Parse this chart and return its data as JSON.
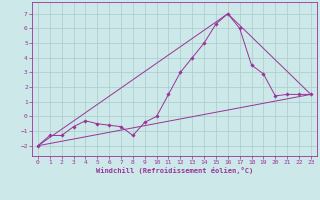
{
  "xlabel": "Windchill (Refroidissement éolien,°C)",
  "background_color": "#cce8e8",
  "grid_color": "#aacccc",
  "line_color": "#993399",
  "xlim": [
    -0.5,
    23.5
  ],
  "ylim": [
    -2.7,
    7.8
  ],
  "yticks": [
    -2,
    -1,
    0,
    1,
    2,
    3,
    4,
    5,
    6,
    7
  ],
  "xticks": [
    0,
    1,
    2,
    3,
    4,
    5,
    6,
    7,
    8,
    9,
    10,
    11,
    12,
    13,
    14,
    15,
    16,
    17,
    18,
    19,
    20,
    21,
    22,
    23
  ],
  "line1_x": [
    0,
    1,
    2,
    3,
    4,
    5,
    6,
    7,
    8,
    9,
    10,
    11,
    12,
    13,
    14,
    15,
    16,
    17,
    18,
    19,
    20,
    21,
    22,
    23
  ],
  "line1_y": [
    -2.0,
    -1.3,
    -1.3,
    -0.7,
    -0.3,
    -0.5,
    -0.6,
    -0.7,
    -1.3,
    -0.4,
    0.0,
    1.5,
    3.0,
    4.0,
    5.0,
    6.3,
    7.0,
    6.0,
    3.5,
    2.9,
    1.4,
    1.5,
    1.5,
    1.5
  ],
  "line2_x": [
    0,
    23
  ],
  "line2_y": [
    -2.0,
    1.5
  ],
  "line3_x": [
    0,
    16,
    23
  ],
  "line3_y": [
    -2.0,
    7.0,
    1.5
  ],
  "tick_fontsize": 4.5,
  "xlabel_fontsize": 5.0
}
